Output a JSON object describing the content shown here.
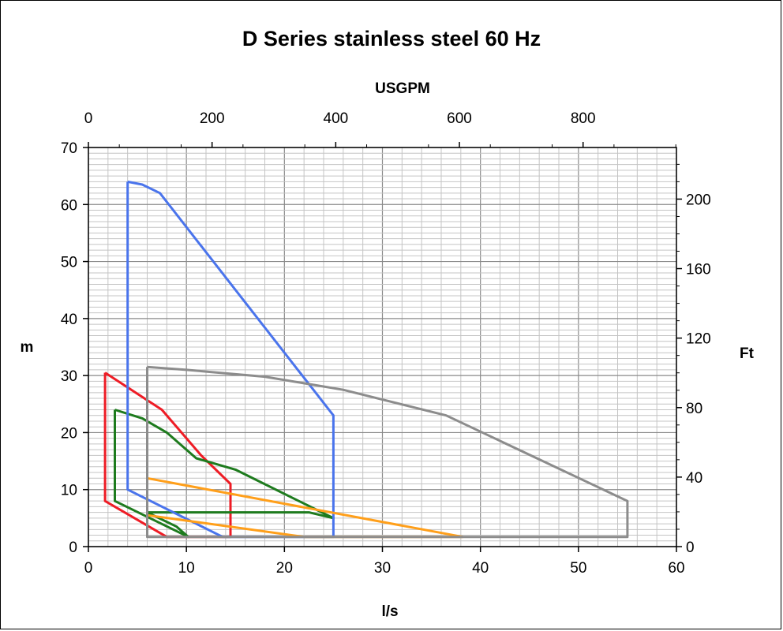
{
  "chart_data": {
    "type": "line",
    "title": "D Series stainless steel 60 Hz",
    "xlabel": "l/s",
    "ylabel": "m",
    "x2label": "USGPM",
    "y2label": "Ft",
    "xlim": [
      0,
      60
    ],
    "ylim": [
      0,
      70
    ],
    "x2lim": [
      0,
      951
    ],
    "y2lim": [
      0,
      229.7
    ],
    "xticks": [
      "0",
      "10",
      "20",
      "30",
      "40",
      "50",
      "60"
    ],
    "yticks": [
      "0",
      "10",
      "20",
      "30",
      "40",
      "50",
      "60",
      "70"
    ],
    "x2ticks": [
      {
        "label": "0",
        "value": 0
      },
      {
        "label": "200",
        "value": 200
      },
      {
        "label": "400",
        "value": 400
      },
      {
        "label": "600",
        "value": 600
      },
      {
        "label": "800",
        "value": 800
      }
    ],
    "y2ticks": [
      {
        "label": "0",
        "value": 0
      },
      {
        "label": "40",
        "value": 40
      },
      {
        "label": "80",
        "value": 80
      },
      {
        "label": "120",
        "value": 120
      },
      {
        "label": "160",
        "value": 160
      },
      {
        "label": "200",
        "value": 200
      }
    ],
    "grid": true,
    "series": [
      {
        "color": "#ee1c25",
        "points": [
          [
            1.7,
            30.5
          ],
          [
            7.5,
            24
          ],
          [
            11.5,
            16
          ],
          [
            14.5,
            11
          ],
          [
            14.5,
            1.7
          ],
          [
            8,
            1.7
          ],
          [
            1.7,
            8
          ],
          [
            1.7,
            30.5
          ]
        ]
      },
      {
        "color": "#1e7b1e",
        "points": [
          [
            2.7,
            24
          ],
          [
            5.5,
            22.5
          ],
          [
            8,
            20
          ],
          [
            11,
            15.5
          ],
          [
            15,
            13.5
          ],
          [
            25,
            5
          ],
          [
            22.5,
            6
          ],
          [
            6,
            6
          ],
          [
            9,
            3.5
          ],
          [
            10.2,
            1.7
          ],
          [
            2.7,
            8
          ],
          [
            2.7,
            24
          ]
        ]
      },
      {
        "color": "#4a74ec",
        "points": [
          [
            4,
            64
          ],
          [
            5.5,
            63.5
          ],
          [
            7.3,
            62
          ],
          [
            25,
            23
          ],
          [
            25,
            1.7
          ],
          [
            13.7,
            1.7
          ],
          [
            4,
            10
          ],
          [
            4,
            64
          ]
        ]
      },
      {
        "color": "#ff9f1a",
        "points": [
          [
            6,
            12
          ],
          [
            38.2,
            1.7
          ],
          [
            22,
            1.7
          ],
          [
            6,
            5.5
          ],
          [
            6,
            12
          ]
        ]
      },
      {
        "color": "#8c8c8c",
        "points": [
          [
            6,
            31.5
          ],
          [
            10,
            31
          ],
          [
            18,
            29.8
          ],
          [
            26,
            27.5
          ],
          [
            36.5,
            23
          ],
          [
            55,
            8
          ],
          [
            55,
            1.7
          ],
          [
            6,
            1.7
          ],
          [
            6,
            31.5
          ]
        ]
      }
    ]
  }
}
